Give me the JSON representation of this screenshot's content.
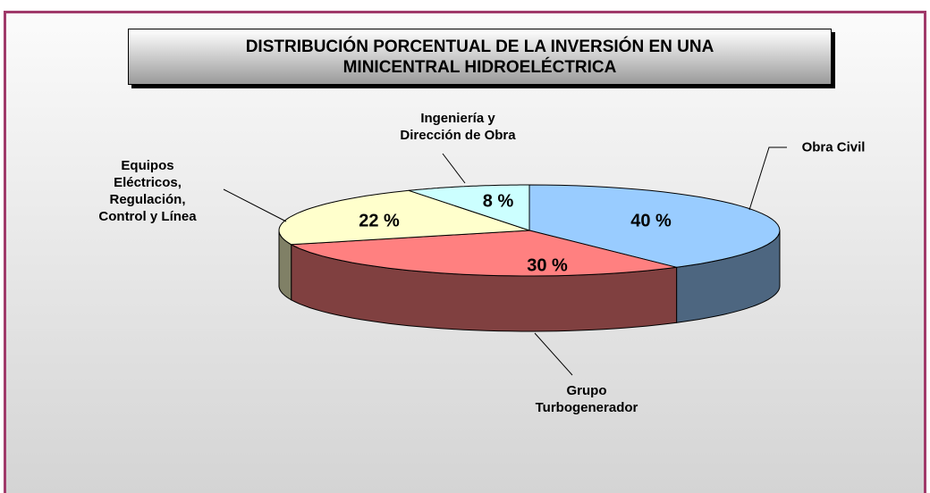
{
  "chart_data": {
    "type": "pie3d",
    "title": "DISTRIBUCIÓN PORCENTUAL DE LA INVERSIÓN EN UNA\nMINICENTRAL HIDROELÉCTRICA",
    "categories": [
      "Obra Civil",
      "Grupo\nTurbogenerador",
      "Equipos\nEléctricos,\nRegulación,\nControl y Línea",
      "Ingeniería y\nDirección de Obra"
    ],
    "values": [
      40,
      30,
      22,
      8
    ],
    "value_labels": [
      "40 %",
      "30 %",
      "22 %",
      "8 %"
    ],
    "colors": [
      "#99ccff",
      "#ff8080",
      "#ffffcc",
      "#ccffff"
    ]
  }
}
